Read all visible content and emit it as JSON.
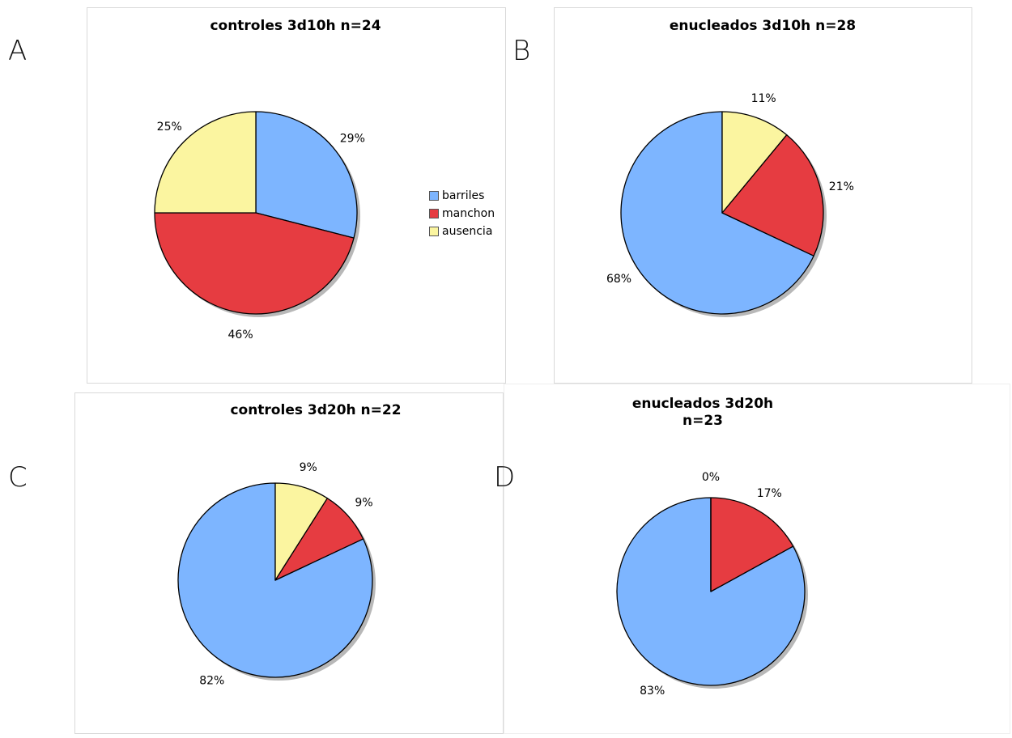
{
  "colors": {
    "barriles": "#7db5ff",
    "manchon": "#e63c41",
    "ausencia": "#fbf5a0"
  },
  "legend": [
    {
      "label": "barriles",
      "color": "#7db5ff"
    },
    {
      "label": "manchon",
      "color": "#e63c41"
    },
    {
      "label": "ausencia",
      "color": "#fbf5a0"
    }
  ],
  "panels": [
    {
      "letter": "A",
      "title": "controles 3d10h n=24"
    },
    {
      "letter": "B",
      "title": "enucleados 3d10h n=28"
    },
    {
      "letter": "C",
      "title": "controles 3d20h n=22"
    },
    {
      "letter": "D",
      "title": "enucleados 3d20h n=23"
    }
  ],
  "chart_data": [
    {
      "type": "pie",
      "title": "controles 3d10h n=24",
      "categories": [
        "barriles",
        "manchon",
        "ausencia"
      ],
      "values": [
        29,
        46,
        25
      ],
      "labels": [
        "29%",
        "46%",
        "25%"
      ],
      "legend": "right"
    },
    {
      "type": "pie",
      "title": "enucleados 3d10h n=28",
      "categories": [
        "barriles",
        "manchon",
        "ausencia"
      ],
      "values": [
        68,
        21,
        11
      ],
      "labels": [
        "68%",
        "21%",
        "11%"
      ]
    },
    {
      "type": "pie",
      "title": "controles 3d20h n=22",
      "categories": [
        "barriles",
        "manchon",
        "ausencia"
      ],
      "values": [
        82,
        9,
        9
      ],
      "labels": [
        "82%",
        "9%",
        "9%"
      ]
    },
    {
      "type": "pie",
      "title": "enucleados 3d20h n=23",
      "categories": [
        "barriles",
        "manchon",
        "ausencia"
      ],
      "values": [
        83,
        17,
        0
      ],
      "labels": [
        "83%",
        "17%",
        "0%"
      ]
    }
  ]
}
